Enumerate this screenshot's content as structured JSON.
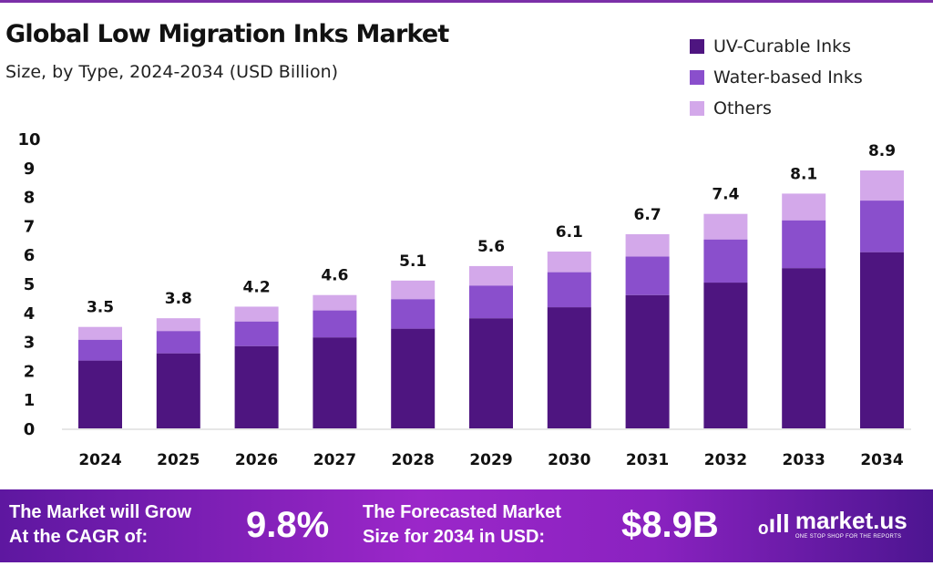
{
  "header": {
    "title": "Global Low Migration Inks Market",
    "subtitle": "Size, by Type, 2024-2034 (USD Billion)"
  },
  "colors": {
    "uv": "#4e1580",
    "water": "#8a4fcc",
    "others": "#d3a8ea",
    "accent": "#7b2fa8"
  },
  "chart_data": {
    "type": "bar",
    "stacked": true,
    "title": "Global Low Migration Inks Market",
    "subtitle": "Size, by Type, 2024-2034 (USD Billion)",
    "xlabel": "",
    "ylabel": "",
    "ylim": [
      0,
      10
    ],
    "yticks": [
      "0",
      "1",
      "2",
      "3",
      "4",
      "5",
      "6",
      "7",
      "8",
      "9",
      "10"
    ],
    "grid": false,
    "legend": "top-right",
    "categories": [
      "2024",
      "2025",
      "2026",
      "2027",
      "2028",
      "2029",
      "2030",
      "2031",
      "2032",
      "2033",
      "2034"
    ],
    "series": [
      {
        "name": "UV-Curable Inks",
        "values": [
          2.34,
          2.59,
          2.84,
          3.14,
          3.44,
          3.8,
          4.18,
          4.6,
          5.03,
          5.53,
          6.08
        ]
      },
      {
        "name": "Water-based Inks",
        "values": [
          0.72,
          0.77,
          0.85,
          0.93,
          1.02,
          1.13,
          1.21,
          1.33,
          1.49,
          1.65,
          1.78
        ]
      },
      {
        "name": "Others",
        "values": [
          0.44,
          0.44,
          0.51,
          0.53,
          0.64,
          0.67,
          0.71,
          0.77,
          0.88,
          0.92,
          1.04
        ]
      }
    ],
    "totals": [
      "3.5",
      "3.8",
      "4.2",
      "4.6",
      "5.1",
      "5.6",
      "6.1",
      "6.7",
      "7.4",
      "8.1",
      "8.9"
    ]
  },
  "banner": {
    "cagr_label_1": "The Market will Grow",
    "cagr_label_2": "At the CAGR of:",
    "cagr_value": "9.8%",
    "forecast_label_1": "The Forecasted Market",
    "forecast_label_2": "Size for 2034 in USD:",
    "forecast_value": "$8.9B",
    "logo_name": "market.us",
    "logo_tagline": "ONE STOP SHOP FOR THE REPORTS"
  }
}
